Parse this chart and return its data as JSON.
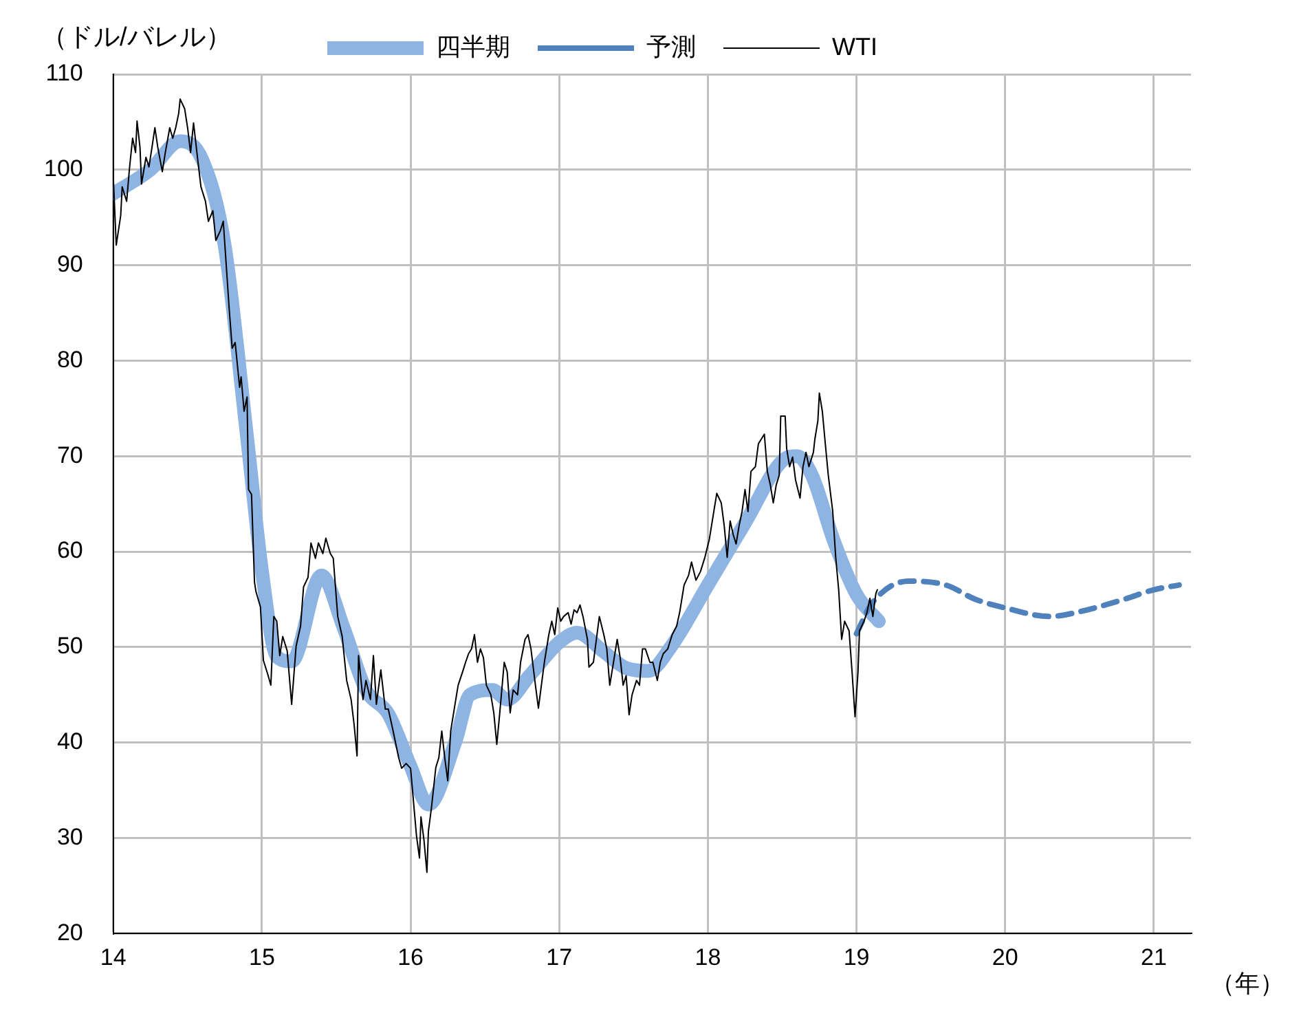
{
  "chart_data": {
    "type": "line",
    "ylabel": "（ドル/バレル）",
    "xlabel": "（年）",
    "xlim": [
      14,
      21.25
    ],
    "xticks": [
      14,
      15,
      16,
      17,
      18,
      19,
      20,
      21
    ],
    "ylim": [
      20,
      110
    ],
    "yticks": [
      20,
      30,
      40,
      50,
      60,
      70,
      80,
      90,
      100,
      110
    ],
    "grid": true,
    "legend": "top",
    "marker": "none",
    "series": [
      {
        "name": "四半期",
        "color": "#8db4e2",
        "line_style": "solid",
        "x": [
          14.0,
          14.25,
          14.45,
          14.6,
          14.75,
          14.9,
          15.0,
          15.1,
          15.2,
          15.4,
          15.55,
          15.7,
          15.85,
          16.0,
          16.12,
          16.3,
          16.4,
          16.55,
          16.65,
          16.8,
          17.0,
          17.12,
          17.3,
          17.45,
          17.6,
          17.75,
          18.0,
          18.25,
          18.5,
          18.6,
          18.7,
          18.85,
          19.0,
          19.15
        ],
        "values": [
          97.5,
          100,
          103,
          101,
          92,
          72,
          58,
          49,
          48.5,
          57.5,
          52,
          45.5,
          43,
          37.5,
          33.5,
          40,
          45,
          45.5,
          44.5,
          47,
          50.5,
          51.5,
          49.5,
          47.8,
          47.5,
          50,
          56.5,
          63,
          69.5,
          70,
          68,
          61,
          55.5,
          52.7
        ]
      },
      {
        "name": "予測",
        "color": "#4f81bd",
        "line_style": "dashed",
        "x": [
          19.0,
          19.1,
          19.35,
          19.6,
          19.8,
          20.0,
          20.3,
          20.5,
          20.8,
          21.0,
          21.17
        ],
        "values": [
          51.4,
          54.5,
          56.9,
          56.5,
          55,
          54.1,
          53.2,
          53.7,
          55,
          56,
          56.5
        ]
      },
      {
        "name": "WTI",
        "color": "#000000",
        "line_style": "solid",
        "x": [
          14.0,
          14.02,
          14.05,
          14.06,
          14.09,
          14.11,
          14.13,
          14.15,
          14.16,
          14.18,
          14.19,
          14.22,
          14.24,
          14.26,
          14.28,
          14.3,
          14.33,
          14.35,
          14.38,
          14.4,
          14.42,
          14.44,
          14.45,
          14.48,
          14.5,
          14.52,
          14.54,
          14.57,
          14.59,
          14.62,
          14.64,
          14.67,
          14.69,
          14.72,
          14.74,
          14.76,
          14.78,
          14.8,
          14.82,
          14.85,
          14.86,
          14.88,
          14.9,
          14.91,
          14.93,
          14.95,
          14.96,
          14.99,
          15.01,
          15.04,
          15.06,
          15.08,
          15.1,
          15.12,
          15.14,
          15.17,
          15.2,
          15.23,
          15.26,
          15.28,
          15.31,
          15.33,
          15.36,
          15.38,
          15.41,
          15.43,
          15.46,
          15.48,
          15.51,
          15.54,
          15.57,
          15.6,
          15.62,
          15.64,
          15.65,
          15.68,
          15.7,
          15.73,
          15.75,
          15.77,
          15.8,
          15.83,
          15.85,
          15.88,
          15.92,
          15.94,
          15.97,
          16.0,
          16.04,
          16.06,
          16.07,
          16.09,
          16.11,
          16.12,
          16.14,
          16.17,
          16.19,
          16.21,
          16.23,
          16.25,
          16.27,
          16.3,
          16.32,
          16.35,
          16.37,
          16.39,
          16.41,
          16.43,
          16.45,
          16.47,
          16.49,
          16.51,
          16.54,
          16.56,
          16.58,
          16.6,
          16.63,
          16.65,
          16.67,
          16.69,
          16.72,
          16.74,
          16.77,
          16.79,
          16.81,
          16.84,
          16.86,
          16.88,
          16.9,
          16.93,
          16.95,
          16.97,
          16.99,
          17.01,
          17.03,
          17.06,
          17.08,
          17.1,
          17.12,
          17.14,
          17.16,
          17.19,
          17.2,
          17.23,
          17.25,
          17.27,
          17.3,
          17.32,
          17.34,
          17.36,
          17.39,
          17.41,
          17.43,
          17.45,
          17.47,
          17.49,
          17.52,
          17.54,
          17.56,
          17.58,
          17.61,
          17.63,
          17.66,
          17.68,
          17.7,
          17.73,
          17.76,
          17.79,
          17.81,
          17.84,
          17.87,
          17.89,
          17.92,
          17.95,
          17.98,
          18.01,
          18.04,
          18.06,
          18.09,
          18.11,
          18.13,
          18.15,
          18.17,
          18.19,
          18.21,
          18.23,
          18.25,
          18.27,
          18.29,
          18.32,
          18.34,
          18.36,
          18.38,
          18.4,
          18.42,
          18.44,
          18.46,
          18.48,
          18.49,
          18.52,
          18.53,
          18.55,
          18.57,
          18.59,
          18.62,
          18.64,
          18.66,
          18.68,
          18.71,
          18.72,
          18.74,
          18.75,
          18.77,
          18.79,
          18.81,
          18.84,
          18.86,
          18.88,
          18.9,
          18.92,
          18.95,
          18.97,
          18.99,
          19.01,
          19.02,
          19.05,
          19.07,
          19.09,
          19.11,
          19.13,
          19.14
        ],
        "values": [
          99.3,
          92.1,
          95.2,
          98.2,
          96.7,
          100.3,
          103.3,
          101.8,
          105.1,
          102.3,
          98.5,
          101.3,
          100.3,
          102.3,
          104.4,
          102.3,
          99.8,
          101.8,
          104.4,
          103.3,
          104.4,
          105.9,
          107.4,
          106.4,
          104.4,
          101.8,
          104.9,
          100.8,
          98.2,
          96.7,
          94.6,
          95.7,
          92.6,
          93.6,
          94.6,
          90.0,
          85.4,
          81.3,
          81.9,
          77.2,
          78.3,
          74.7,
          76.2,
          66.5,
          66.0,
          56.8,
          55.8,
          54.2,
          48.6,
          47.1,
          46.0,
          53.2,
          52.7,
          49.1,
          51.1,
          49.6,
          44.0,
          50.1,
          52.2,
          56.3,
          57.3,
          60.9,
          59.3,
          60.9,
          59.8,
          61.4,
          59.8,
          59.3,
          53.2,
          51.1,
          46.5,
          44.5,
          41.9,
          38.6,
          49.1,
          44.5,
          46.5,
          44.5,
          49.1,
          44.0,
          47.6,
          43.5,
          43.5,
          41.4,
          38.4,
          37.3,
          37.8,
          37.3,
          30.2,
          27.9,
          32.2,
          29.8,
          26.4,
          30.7,
          33.1,
          37.4,
          38.4,
          41.2,
          38.4,
          36.0,
          41.2,
          44.1,
          46.0,
          47.4,
          48.4,
          49.3,
          49.8,
          51.3,
          48.4,
          49.8,
          48.9,
          46.0,
          45.0,
          43.1,
          39.8,
          43.1,
          48.4,
          47.4,
          43.1,
          45.5,
          45.0,
          48.4,
          50.8,
          51.3,
          49.8,
          46.0,
          43.6,
          46.0,
          48.4,
          51.3,
          52.7,
          51.3,
          54.1,
          52.7,
          53.2,
          53.6,
          52.4,
          53.9,
          53.6,
          54.4,
          53.2,
          50.8,
          47.9,
          48.4,
          50.8,
          53.2,
          51.3,
          49.8,
          46.0,
          47.9,
          50.8,
          48.9,
          46.0,
          47.0,
          42.9,
          45.0,
          46.5,
          46.0,
          49.8,
          49.8,
          48.4,
          48.4,
          46.5,
          48.4,
          49.3,
          49.8,
          51.3,
          52.2,
          53.6,
          56.5,
          57.5,
          58.9,
          57.0,
          57.9,
          59.4,
          61.3,
          64.2,
          66.1,
          65.1,
          62.7,
          59.4,
          63.2,
          61.8,
          60.8,
          62.7,
          64.2,
          66.5,
          64.2,
          68.4,
          68.9,
          71.3,
          71.8,
          72.3,
          68.4,
          67.0,
          65.1,
          67.0,
          68.0,
          74.2,
          74.2,
          70.8,
          68.9,
          69.9,
          67.5,
          65.6,
          68.9,
          70.4,
          68.9,
          70.4,
          71.8,
          73.7,
          76.6,
          74.7,
          71.3,
          68.0,
          64.2,
          59.4,
          56.0,
          50.8,
          52.7,
          51.7,
          47.4,
          42.7,
          47.4,
          51.7,
          52.7,
          53.6,
          55.1,
          53.2,
          55.6,
          56.0
        ]
      }
    ]
  }
}
